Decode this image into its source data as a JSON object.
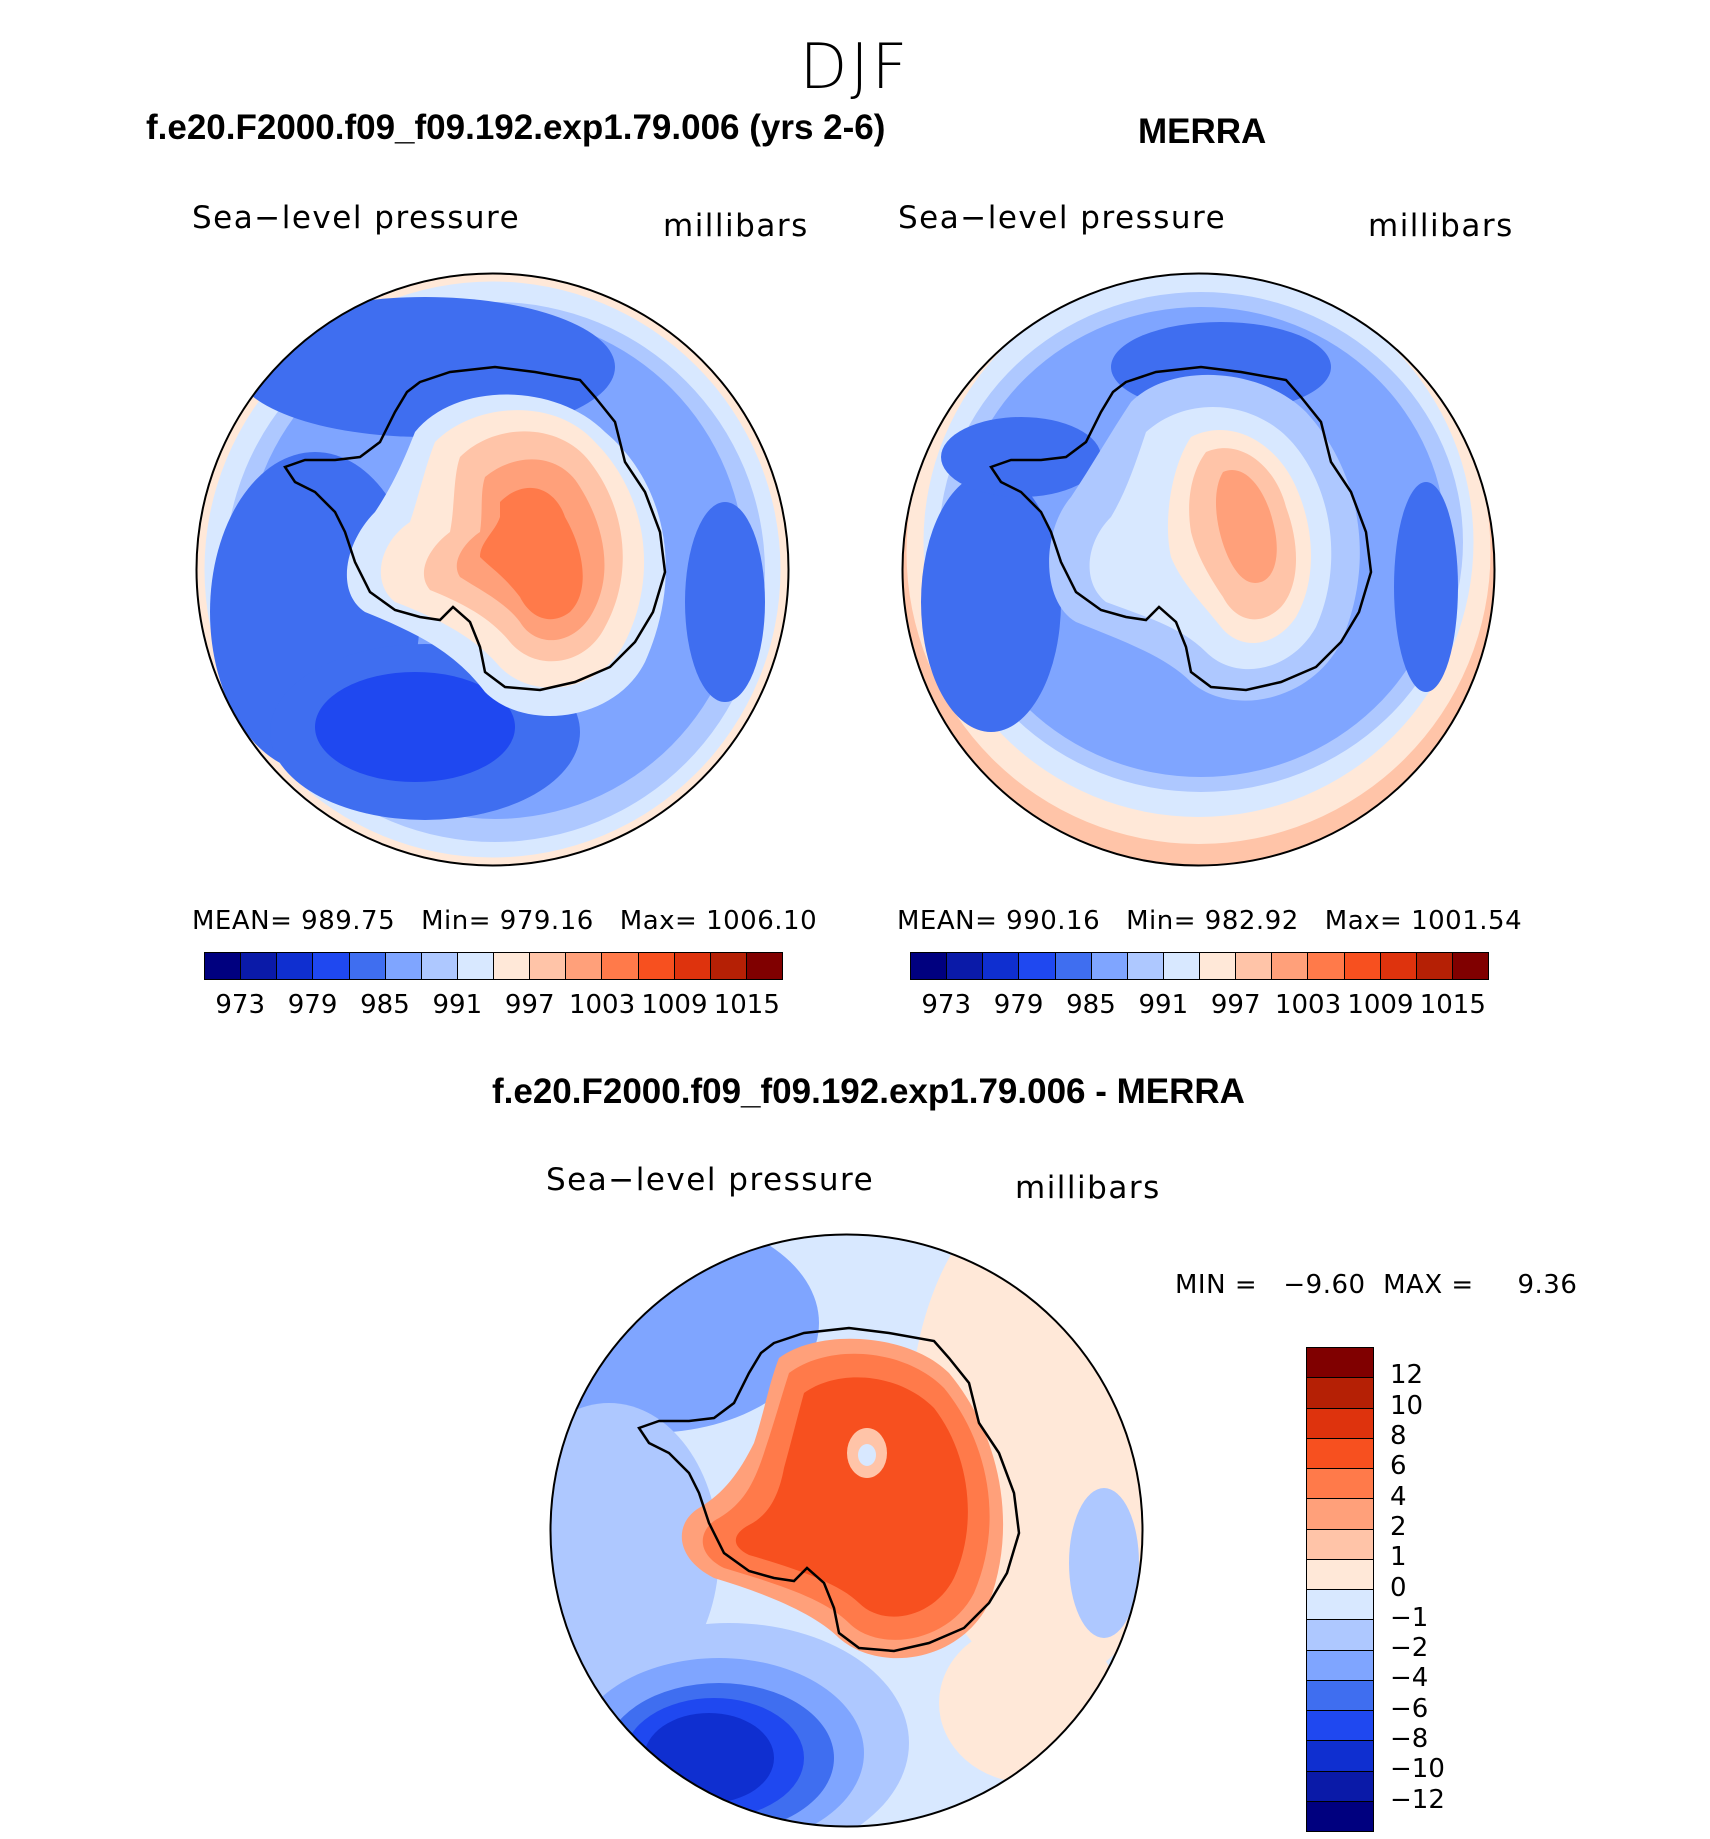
{
  "title": "DJF",
  "panels": {
    "model": {
      "heading": "f.e20.F2000.f09_f09.192.exp1.79.006 (yrs 2-6)",
      "variable": "Sea−level pressure",
      "units": "millibars",
      "stats": {
        "mean": "MEAN= 989.75",
        "min": "Min= 979.16",
        "max": "Max= 1006.10"
      }
    },
    "obs": {
      "heading": "MERRA",
      "variable": "Sea−level pressure",
      "units": "millibars",
      "stats": {
        "mean": "MEAN= 990.16",
        "min": "Min= 982.92",
        "max": "Max= 1001.54"
      }
    },
    "diff": {
      "heading": "f.e20.F2000.f09_f09.192.exp1.79.006 - MERRA",
      "variable": "Sea−level pressure",
      "units": "millibars",
      "minmax": "MIN =   −9.60  MAX =     9.36"
    }
  },
  "colorbar_abs": {
    "colors": [
      "#00007f",
      "#0a1aa8",
      "#0f2fd0",
      "#1f48f0",
      "#3f6ef0",
      "#7fa5ff",
      "#aec8ff",
      "#d8e8ff",
      "#ffe8d8",
      "#ffc4a8",
      "#ffa07a",
      "#ff7a4a",
      "#f7501f",
      "#de330d",
      "#b52005",
      "#800000"
    ],
    "tick_labels": [
      "973",
      "979",
      "985",
      "991",
      "997",
      "1003",
      "1009",
      "1015"
    ]
  },
  "colorbar_diff": {
    "colors": [
      "#800000",
      "#b52005",
      "#de330d",
      "#f7501f",
      "#ff7a4a",
      "#ffa07a",
      "#ffc4a8",
      "#ffe8d8",
      "#d8e8ff",
      "#aec8ff",
      "#7fa5ff",
      "#3f6ef0",
      "#1f48f0",
      "#0f2fd0",
      "#0a1aa8",
      "#00007f"
    ],
    "tick_labels": [
      "12",
      "10",
      "8",
      "6",
      "4",
      "2",
      "1",
      "0",
      "−1",
      "−2",
      "−4",
      "−6",
      "−8",
      "−10",
      "−12"
    ]
  },
  "chart_data": [
    {
      "type": "heatmap",
      "title": "f.e20.F2000.f09_f09.192.exp1.79.006 (yrs 2-6)",
      "variable": "Sea-level pressure",
      "units": "millibars",
      "projection": "south polar stereographic",
      "mean": 989.75,
      "min": 979.16,
      "max": 1006.1,
      "levels": [
        973,
        976,
        979,
        982,
        985,
        988,
        991,
        994,
        997,
        1000,
        1003,
        1006,
        1009,
        1012,
        1015
      ]
    },
    {
      "type": "heatmap",
      "title": "MERRA",
      "variable": "Sea-level pressure",
      "units": "millibars",
      "projection": "south polar stereographic",
      "mean": 990.16,
      "min": 982.92,
      "max": 1001.54,
      "levels": [
        973,
        976,
        979,
        982,
        985,
        988,
        991,
        994,
        997,
        1000,
        1003,
        1006,
        1009,
        1012,
        1015
      ]
    },
    {
      "type": "heatmap",
      "title": "f.e20.F2000.f09_f09.192.exp1.79.006 - MERRA",
      "variable": "Sea-level pressure",
      "units": "millibars",
      "projection": "south polar stereographic",
      "min": -9.6,
      "max": 9.36,
      "levels": [
        -12,
        -10,
        -8,
        -6,
        -4,
        -2,
        -1,
        0,
        1,
        2,
        4,
        6,
        8,
        10,
        12
      ]
    }
  ]
}
